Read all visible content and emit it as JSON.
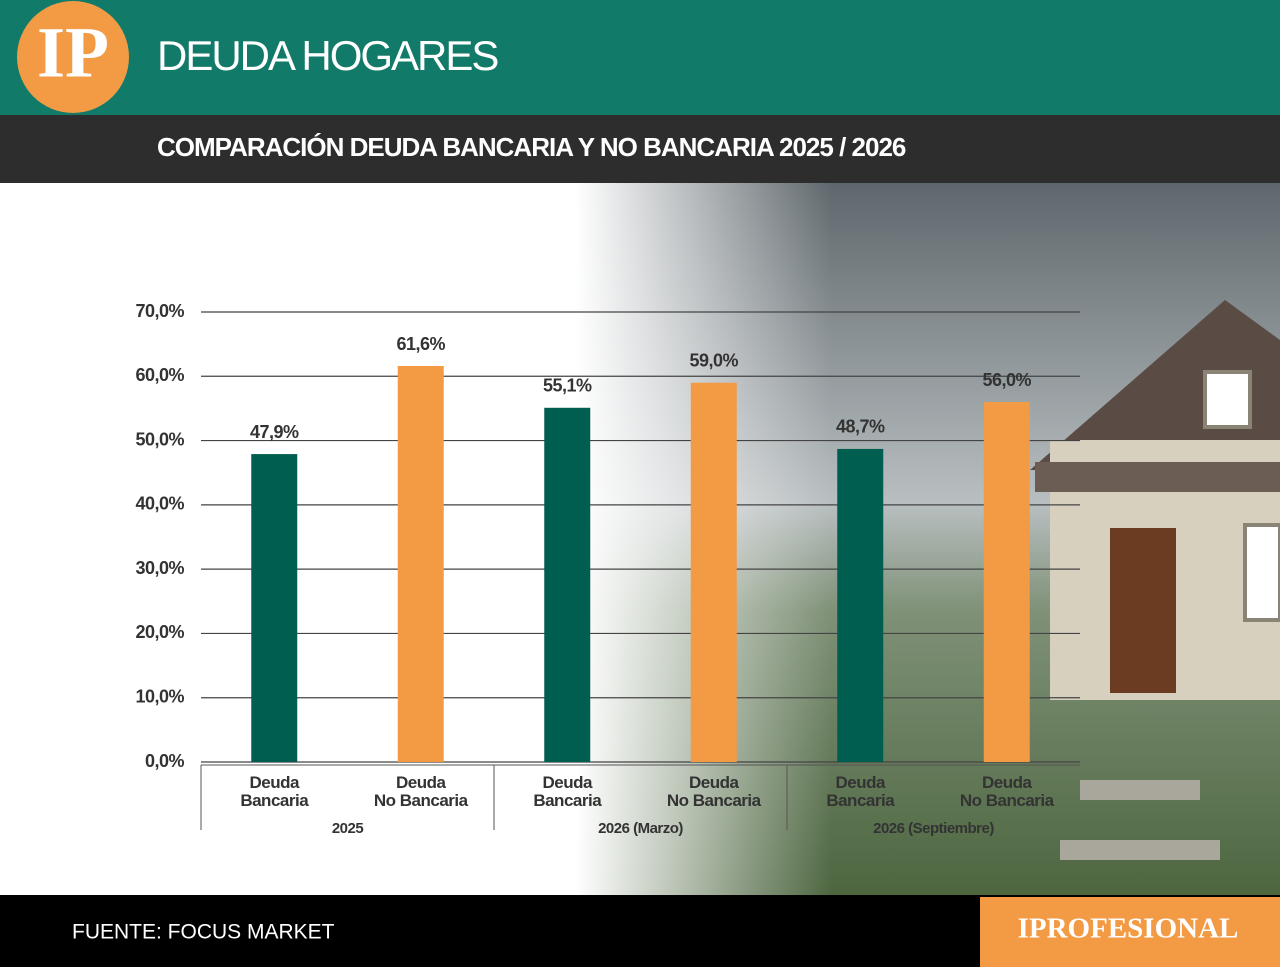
{
  "chart_data": {
    "type": "bar",
    "logo": "IP",
    "title": "DEUDA HOGARES",
    "subtitle": "COMPARACIÓN DEUDA BANCARIA Y NO BANCARIA 2025 / 2026",
    "categories": [
      "Deuda\nBancaria",
      "Deuda\nNo Bancaria",
      "Deuda\nBancaria",
      "Deuda\nNo Bancaria",
      "Deuda\nBancaria",
      "Deuda\nNo Bancaria"
    ],
    "groups": [
      "2025",
      "2026 (Marzo)",
      "2026 (Septiembre)"
    ],
    "values": [
      47.9,
      61.6,
      55.1,
      59.0,
      48.7,
      56.0
    ],
    "value_labels": [
      "47,9%",
      "61,6%",
      "55,1%",
      "59,0%",
      "48,7%",
      "56,0%"
    ],
    "colors": [
      "#005e50",
      "#f39a45",
      "#005e50",
      "#f39a45",
      "#005e50",
      "#f39a45"
    ],
    "ylim": [
      0,
      70
    ],
    "yticks": [
      {
        "value": 0,
        "label": "0,0%"
      },
      {
        "value": 10,
        "label": "10,0%"
      },
      {
        "value": 20,
        "label": "20,0%"
      },
      {
        "value": 30,
        "label": "30,0%"
      },
      {
        "value": 40,
        "label": "40,0%"
      },
      {
        "value": 50,
        "label": "50,0%"
      },
      {
        "value": 60,
        "label": "60,0%"
      },
      {
        "value": 70,
        "label": "70,0%"
      }
    ],
    "grid": true,
    "source": "FUENTE: FOCUS MARKET",
    "brand": "IPROFESIONAL"
  }
}
